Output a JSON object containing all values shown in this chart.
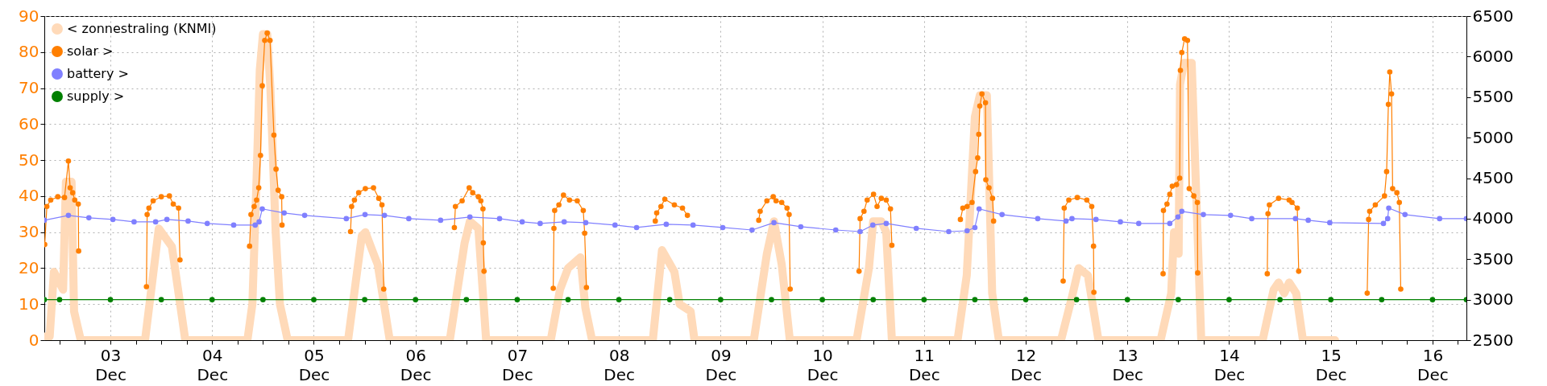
{
  "chart_data": {
    "type": "line",
    "xlim": [
      "--12-02T08:24",
      "--12-16T08:00"
    ],
    "xticks": [
      {
        "value": "--12-02T12:00",
        "label": null
      },
      {
        "value": "--12-02T18:00",
        "label": null
      },
      {
        "value": "--12-03T00:00",
        "label": "03\nDec"
      },
      {
        "value": "--12-03T06:00",
        "label": null
      },
      {
        "value": "--12-03T12:00",
        "label": null
      },
      {
        "value": "--12-03T18:00",
        "label": null
      },
      {
        "value": "--12-04T00:00",
        "label": "04\nDec"
      },
      {
        "value": "--12-04T06:00",
        "label": null
      },
      {
        "value": "--12-04T12:00",
        "label": null
      },
      {
        "value": "--12-04T18:00",
        "label": null
      },
      {
        "value": "--12-05T00:00",
        "label": "05\nDec"
      },
      {
        "value": "--12-05T06:00",
        "label": null
      },
      {
        "value": "--12-05T12:00",
        "label": null
      },
      {
        "value": "--12-05T18:00",
        "label": null
      },
      {
        "value": "--12-06T00:00",
        "label": "06\nDec"
      },
      {
        "value": "--12-06T06:00",
        "label": null
      },
      {
        "value": "--12-06T12:00",
        "label": null
      },
      {
        "value": "--12-06T18:00",
        "label": null
      },
      {
        "value": "--12-07T00:00",
        "label": "07\nDec"
      },
      {
        "value": "--12-07T06:00",
        "label": null
      },
      {
        "value": "--12-07T12:00",
        "label": null
      },
      {
        "value": "--12-07T18:00",
        "label": null
      },
      {
        "value": "--12-08T00:00",
        "label": "08\nDec"
      },
      {
        "value": "--12-08T06:00",
        "label": null
      },
      {
        "value": "--12-08T12:00",
        "label": null
      },
      {
        "value": "--12-08T18:00",
        "label": null
      },
      {
        "value": "--12-09T00:00",
        "label": "09\nDec"
      },
      {
        "value": "--12-09T06:00",
        "label": null
      },
      {
        "value": "--12-09T12:00",
        "label": null
      },
      {
        "value": "--12-09T18:00",
        "label": null
      },
      {
        "value": "--12-10T00:00",
        "label": "10\nDec"
      },
      {
        "value": "--12-10T06:00",
        "label": null
      },
      {
        "value": "--12-10T12:00",
        "label": null
      },
      {
        "value": "--12-10T18:00",
        "label": null
      },
      {
        "value": "--12-11T00:00",
        "label": "11\nDec"
      },
      {
        "value": "--12-11T06:00",
        "label": null
      },
      {
        "value": "--12-11T12:00",
        "label": null
      },
      {
        "value": "--12-11T18:00",
        "label": null
      },
      {
        "value": "--12-12T00:00",
        "label": "12\nDec"
      },
      {
        "value": "--12-12T06:00",
        "label": null
      },
      {
        "value": "--12-12T12:00",
        "label": null
      },
      {
        "value": "--12-12T18:00",
        "label": null
      },
      {
        "value": "--12-13T00:00",
        "label": "13\nDec"
      },
      {
        "value": "--12-13T06:00",
        "label": null
      },
      {
        "value": "--12-13T12:00",
        "label": null
      },
      {
        "value": "--12-13T18:00",
        "label": null
      },
      {
        "value": "--12-14T00:00",
        "label": "14\nDec"
      },
      {
        "value": "--12-14T06:00",
        "label": null
      },
      {
        "value": "--12-14T12:00",
        "label": null
      },
      {
        "value": "--12-14T18:00",
        "label": null
      },
      {
        "value": "--12-15T00:00",
        "label": "15\nDec"
      },
      {
        "value": "--12-15T06:00",
        "label": null
      },
      {
        "value": "--12-15T12:00",
        "label": null
      },
      {
        "value": "--12-15T18:00",
        "label": null
      },
      {
        "value": "--12-16T00:00",
        "label": "16\nDec"
      },
      {
        "value": "--12-16T06:00",
        "label": null
      }
    ],
    "ylim": [
      0,
      90
    ],
    "yticks": [
      0,
      10,
      20,
      30,
      40,
      50,
      60,
      70,
      80,
      90
    ],
    "y2lim": [
      2500,
      6500
    ],
    "y2ticks": [
      2500,
      3000,
      3500,
      4000,
      4500,
      5000,
      5500,
      6000,
      6500
    ],
    "grid": true,
    "legend": "top left",
    "series": [
      {
        "name": "< zonnestraling (KNMI)",
        "color": "#ffdab9",
        "x": [
          "--12-02T08:24",
          "--12-02T09:40",
          "--12-02T10:40",
          "--12-02T12:50",
          "--12-02T13:30",
          "--12-02T14:50",
          "--12-02T15:25",
          "--12-02T17:00",
          "--12-03T08:10",
          "--12-03T11:25",
          "--12-03T14:30",
          "--12-03T17:40",
          "--12-04T08:20",
          "--12-04T09:30",
          "--12-04T10:30",
          "--12-04T11:15",
          "--12-04T12:00",
          "--12-04T13:00",
          "--12-04T13:45",
          "--12-04T15:00",
          "--12-04T16:00",
          "--12-04T17:50",
          "--12-05T08:05",
          "--12-05T11:20",
          "--12-05T12:10",
          "--12-05T14:05",
          "--12-05T15:05",
          "--12-05T17:55",
          "--12-06T08:05",
          "--12-06T11:35",
          "--12-06T12:50",
          "--12-06T14:50",
          "--12-06T16:40",
          "--12-07T07:55",
          "--12-07T10:05",
          "--12-07T12:00",
          "--12-07T14:55",
          "--12-07T16:05",
          "--12-07T17:40",
          "--12-08T08:00",
          "--12-08T10:10",
          "--12-08T13:05",
          "--12-08T14:20",
          "--12-08T16:55",
          "--12-08T17:50",
          "--12-09T07:50",
          "--12-09T10:55",
          "--12-09T12:35",
          "--12-09T14:25",
          "--12-09T16:20",
          "--12-10T08:05",
          "--12-10T11:00",
          "--12-10T12:00",
          "--12-10T13:55",
          "--12-10T15:05",
          "--12-10T16:25",
          "--12-11T07:55",
          "--12-11T10:05",
          "--12-11T12:00",
          "--12-11T13:10",
          "--12-11T14:50",
          "--12-11T16:05",
          "--12-11T17:40",
          "--12-12T08:20",
          "--12-12T10:55",
          "--12-12T12:30",
          "--12-12T14:40",
          "--12-12T17:10",
          "--12-13T07:50",
          "--12-13T10:20",
          "--12-13T11:00",
          "--12-13T12:05",
          "--12-13T12:25",
          "--12-13T13:20",
          "--12-13T15:10",
          "--12-13T17:25",
          "--12-14T07:55",
          "--12-14T10:30",
          "--12-14T11:40",
          "--12-14T13:00",
          "--12-14T14:10",
          "--12-14T15:50",
          "--12-14T17:25",
          "--12-15T01:00"
        ],
        "values": [
          1,
          1,
          19,
          14,
          44,
          44,
          8,
          0,
          0,
          31,
          26,
          0,
          0,
          10,
          45,
          75,
          85,
          85,
          70,
          30,
          10,
          0,
          0,
          29,
          30,
          24,
          21,
          0,
          0,
          27,
          33,
          31,
          0,
          0,
          14,
          20,
          23,
          9,
          0,
          0,
          25,
          19,
          10,
          8,
          0,
          0,
          24,
          33,
          21,
          0,
          0,
          20,
          33,
          33,
          30,
          0,
          0,
          18,
          62,
          68,
          68,
          13,
          0,
          0,
          12,
          20,
          18,
          0,
          0,
          13,
          30,
          24,
          71,
          77,
          77,
          0,
          0,
          14,
          16,
          13,
          16,
          13,
          0,
          0
        ]
      },
      {
        "name": "solar >",
        "color": "#ff7f00",
        "axis": "y2",
        "marker": "circle",
        "x": [
          "--12-02T08:30",
          "--12-02T09:00",
          "--12-02T09:55",
          "--12-02T11:35",
          "--12-02T13:10",
          "--12-02T14:05",
          "--12-02T14:30",
          "--12-02T15:05",
          "--12-02T15:35",
          "--12-02T16:25",
          "--12-02T16:30",
          "--12-03T00:00",
          "--12-03T08:30",
          "--12-03T08:40",
          "--12-03T09:05",
          "--12-03T10:05",
          "--12-03T12:00",
          "--12-03T13:55",
          "--12-03T14:50",
          "--12-03T16:05",
          "--12-03T16:25",
          "--12-04T00:00",
          "--12-04T08:50",
          "--12-04T09:10",
          "--12-04T09:55",
          "--12-04T10:30",
          "--12-04T11:00",
          "--12-04T11:25",
          "--12-04T11:50",
          "--12-04T12:25",
          "--12-04T13:00",
          "--12-04T13:40",
          "--12-04T14:35",
          "--12-04T15:05",
          "--12-04T15:35",
          "--12-04T16:25",
          "--12-04T16:30",
          "--12-05T00:00",
          "--12-05T08:40",
          "--12-05T08:55",
          "--12-05T09:35",
          "--12-05T10:35",
          "--12-05T12:10",
          "--12-05T14:05",
          "--12-05T15:20",
          "--12-05T16:05",
          "--12-05T16:30",
          "--12-06T00:00",
          "--12-06T09:10",
          "--12-06T09:25",
          "--12-06T11:00",
          "--12-06T12:40",
          "--12-06T13:30",
          "--12-06T14:50",
          "--12-06T15:25",
          "--12-06T15:55",
          "--12-06T16:00",
          "--12-06T16:10",
          "--12-07T00:00",
          "--12-07T08:30",
          "--12-07T08:40",
          "--12-07T08:50",
          "--12-07T09:50",
          "--12-07T10:55",
          "--12-07T12:20",
          "--12-07T14:10",
          "--12-07T15:35",
          "--12-07T15:55",
          "--12-07T16:20",
          "--12-08T00:00",
          "--12-08T08:35",
          "--12-08T08:55",
          "--12-08T09:55",
          "--12-08T10:50",
          "--12-08T13:05",
          "--12-08T15:00",
          "--12-08T16:10",
          "--12-09T00:00",
          "--12-09T09:00",
          "--12-09T09:20",
          "--12-09T10:55",
          "--12-09T12:25",
          "--12-09T13:05",
          "--12-09T14:25",
          "--12-09T15:40",
          "--12-09T16:10",
          "--12-09T16:25",
          "--12-10T00:00",
          "--12-10T08:40",
          "--12-10T08:55",
          "--12-10T09:50",
          "--12-10T10:35",
          "--12-10T12:05",
          "--12-10T12:55",
          "--12-10T13:55",
          "--12-10T15:05",
          "--12-10T16:05",
          "--12-10T16:25",
          "--12-11T00:00",
          "--12-11T08:35",
          "--12-11T09:10",
          "--12-11T10:10",
          "--12-11T11:20",
          "--12-11T12:10",
          "--12-11T12:40",
          "--12-11T12:55",
          "--12-11T13:10",
          "--12-11T13:40",
          "--12-11T14:30",
          "--12-11T14:35",
          "--12-11T15:20",
          "--12-11T16:10",
          "--12-11T16:25",
          "--12-12T00:00",
          "--12-12T08:50",
          "--12-12T09:05",
          "--12-12T10:10",
          "--12-12T12:10",
          "--12-12T14:25",
          "--12-12T15:35",
          "--12-12T16:00",
          "--12-12T16:05",
          "--12-13T00:00",
          "--12-13T08:25",
          "--12-13T08:30",
          "--12-13T09:20",
          "--12-13T10:00",
          "--12-13T10:35",
          "--12-13T11:35",
          "--12-13T12:20",
          "--12-13T12:30",
          "--12-13T12:50",
          "--12-13T13:30",
          "--12-13T14:10",
          "--12-13T14:35",
          "--12-13T15:40",
          "--12-13T16:30",
          "--12-13T16:35",
          "--12-14T00:00",
          "--12-14T09:00",
          "--12-14T09:10",
          "--12-14T09:30",
          "--12-14T11:40",
          "--12-14T14:10",
          "--12-14T14:50",
          "--12-14T16:05",
          "--12-14T16:25",
          "--12-15T00:00",
          "--12-15T08:35",
          "--12-15T08:55",
          "--12-15T09:10",
          "--12-15T10:30",
          "--12-15T12:40",
          "--12-15T13:10",
          "--12-15T13:35",
          "--12-15T13:55",
          "--12-15T14:20",
          "--12-15T14:35",
          "--12-15T15:35",
          "--12-15T16:10",
          "--12-15T16:30"
        ],
        "values": [
          3680,
          4150,
          4230,
          4270,
          4260,
          4710,
          4380,
          4320,
          4230,
          4180,
          3600,
          null,
          3160,
          4050,
          4130,
          4220,
          4270,
          4280,
          4180,
          4130,
          3490,
          null,
          3660,
          4050,
          4150,
          4230,
          4380,
          4780,
          5640,
          6200,
          6290,
          6200,
          5030,
          4610,
          4350,
          4270,
          3920,
          null,
          3840,
          4150,
          4230,
          4320,
          4370,
          4380,
          4250,
          4170,
          3130,
          null,
          3890,
          4150,
          4220,
          4380,
          4320,
          4270,
          4220,
          4120,
          3700,
          3350,
          null,
          3140,
          3880,
          4100,
          4170,
          4290,
          4230,
          4220,
          4100,
          3820,
          3150,
          null,
          3970,
          4070,
          4150,
          4240,
          4170,
          4130,
          4040,
          null,
          3980,
          4090,
          4220,
          4270,
          4220,
          4200,
          4130,
          4050,
          3130,
          null,
          3350,
          4000,
          4090,
          4230,
          4300,
          4150,
          4250,
          4230,
          4120,
          3670,
          null,
          3990,
          4130,
          4150,
          4200,
          4580,
          4750,
          5040,
          5390,
          5540,
          5430,
          4480,
          4380,
          4250,
          3970,
          null,
          3230,
          4130,
          4230,
          4260,
          4230,
          4150,
          3660,
          3090,
          null,
          3320,
          4100,
          4180,
          4300,
          4400,
          4420,
          4500,
          5830,
          6050,
          6220,
          6200,
          4370,
          4280,
          4200,
          3330,
          null,
          3320,
          4060,
          4170,
          4250,
          4230,
          4200,
          4130,
          3350,
          null,
          3080,
          3990,
          4090,
          4170,
          4280,
          4580,
          5410,
          5810,
          5540,
          4370,
          4320,
          4200,
          3130
        ]
      },
      {
        "name": "battery >",
        "color": "#8080ff",
        "axis": "y2",
        "marker": "circle",
        "x": [
          "--12-02T08:24",
          "--12-02T14:05",
          "--12-02T18:55",
          "--12-03T00:35",
          "--12-03T05:35",
          "--12-03T10:40",
          "--12-03T13:20",
          "--12-03T18:20",
          "--12-03T22:50",
          "--12-04T05:05",
          "--12-04T10:10",
          "--12-04T11:05",
          "--12-04T11:50",
          "--12-04T17:00",
          "--12-04T21:50",
          "--12-05T07:40",
          "--12-05T12:05",
          "--12-05T16:40",
          "--12-05T22:25",
          "--12-06T05:55",
          "--12-06T12:50",
          "--12-06T19:50",
          "--12-07T01:10",
          "--12-07T05:25",
          "--12-07T11:05",
          "--12-07T16:10",
          "--12-07T23:05",
          "--12-08T04:10",
          "--12-08T11:10",
          "--12-08T17:30",
          "--12-09T00:30",
          "--12-09T07:25",
          "--12-09T12:35",
          "--12-09T18:55",
          "--12-10T03:10",
          "--12-10T08:55",
          "--12-10T11:55",
          "--12-10T15:05",
          "--12-10T22:10",
          "--12-11T05:50",
          "--12-11T10:10",
          "--12-11T12:00",
          "--12-11T13:00",
          "--12-11T18:25",
          "--12-12T02:50",
          "--12-12T09:30",
          "--12-12T10:55",
          "--12-12T16:35",
          "--12-12T22:20",
          "--12-13T02:40",
          "--12-13T10:00",
          "--12-13T11:55",
          "--12-13T12:50",
          "--12-13T17:55",
          "--12-14T00:20",
          "--12-14T05:20",
          "--12-14T15:40",
          "--12-14T18:40",
          "--12-14T23:45",
          "--12-15T12:25",
          "--12-15T13:25",
          "--12-15T13:40",
          "--12-15T17:30",
          "--12-16T01:40",
          "--12-16T08:00"
        ],
        "values": [
          3980,
          4040,
          4010,
          3990,
          3960,
          3960,
          3990,
          3970,
          3940,
          3920,
          3920,
          3960,
          4120,
          4070,
          4040,
          4000,
          4050,
          4040,
          4000,
          3980,
          4020,
          4000,
          3960,
          3940,
          3960,
          3950,
          3920,
          3890,
          3930,
          3920,
          3890,
          3860,
          3950,
          3900,
          3860,
          3840,
          3920,
          3940,
          3880,
          3840,
          3850,
          3890,
          4120,
          4050,
          4000,
          3970,
          4000,
          3990,
          3960,
          3940,
          3940,
          4020,
          4090,
          4050,
          4040,
          4000,
          4000,
          3980,
          3950,
          3940,
          4000,
          4130,
          4050,
          4000,
          4000
        ]
      },
      {
        "name": "supply >",
        "color": "#008000",
        "axis": "y2",
        "marker": "circle",
        "x": [
          "--12-02T08:24",
          "--12-02T12:00",
          "--12-03T00:00",
          "--12-03T12:00",
          "--12-04T00:00",
          "--12-04T12:00",
          "--12-05T00:00",
          "--12-05T12:00",
          "--12-06T00:00",
          "--12-06T12:00",
          "--12-07T00:00",
          "--12-07T12:00",
          "--12-08T00:00",
          "--12-08T12:00",
          "--12-09T00:00",
          "--12-09T12:00",
          "--12-10T00:00",
          "--12-10T12:00",
          "--12-11T00:00",
          "--12-11T12:00",
          "--12-12T00:00",
          "--12-12T12:00",
          "--12-13T00:00",
          "--12-13T12:00",
          "--12-14T00:00",
          "--12-14T12:00",
          "--12-15T00:00",
          "--12-15T12:00",
          "--12-16T00:00",
          "--12-16T08:00"
        ],
        "values": [
          3000,
          3000,
          3000,
          3000,
          3000,
          3000,
          3000,
          3000,
          3000,
          3000,
          3000,
          3000,
          3000,
          3000,
          3000,
          3000,
          3000,
          3000,
          3000,
          3000,
          3000,
          3000,
          3000,
          3000,
          3000,
          3000,
          3000,
          3000,
          3000,
          3000
        ]
      }
    ]
  }
}
